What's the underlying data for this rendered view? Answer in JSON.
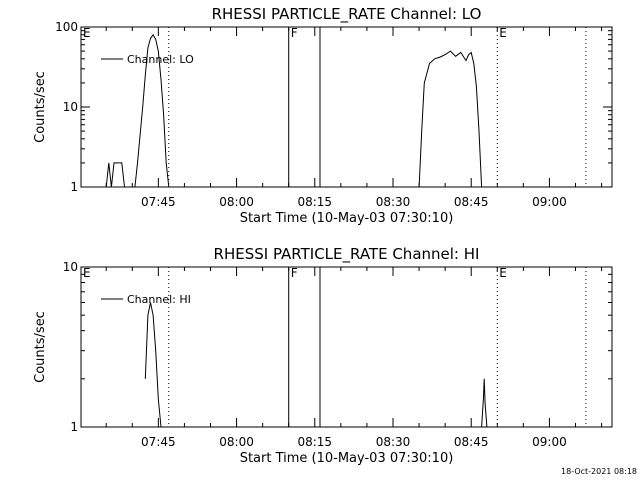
{
  "footer": "18-Oct-2021 08:18",
  "chart_data": [
    {
      "type": "line",
      "title": "RHESSI PARTICLE_RATE Channel: LO",
      "xlabel": "Start Time (10-May-03 07:30:10)",
      "ylabel": "Counts/sec",
      "yscale": "log",
      "ylim": [
        1,
        100
      ],
      "xlim": [
        "07:30:10",
        "09:12:00"
      ],
      "xticks": [
        "07:45",
        "08:00",
        "08:15",
        "08:30",
        "08:45",
        "09:00"
      ],
      "yticks": [
        "1",
        "10",
        "100"
      ],
      "legend": {
        "label": "Channel: LO",
        "placement": "top-left"
      },
      "markers": [
        {
          "label": "E",
          "time": "07:30:10",
          "style": "none"
        },
        {
          "label": "",
          "time": "07:47:00",
          "style": "dotted"
        },
        {
          "label": "F",
          "time": "08:10:00",
          "style": "solid"
        },
        {
          "label": "",
          "time": "08:16:00",
          "style": "solid"
        },
        {
          "label": "E",
          "time": "08:50:00",
          "style": "dotted"
        },
        {
          "label": "",
          "time": "09:07:00",
          "style": "dotted"
        }
      ],
      "series": [
        {
          "name": "Channel: LO",
          "segments": [
            [
              [
                "07:35:00",
                1
              ],
              [
                "07:35:30",
                2
              ],
              [
                "07:36:00",
                1
              ],
              [
                "07:36:30",
                2
              ],
              [
                "07:38:00",
                2
              ],
              [
                "07:38:30",
                1
              ],
              [
                "07:40:30",
                1
              ],
              [
                "07:41:00",
                2
              ],
              [
                "07:42:00",
                10
              ],
              [
                "07:42:30",
                25
              ],
              [
                "07:43:00",
                55
              ],
              [
                "07:43:30",
                72
              ],
              [
                "07:44:00",
                80
              ],
              [
                "07:44:30",
                70
              ],
              [
                "07:45:00",
                50
              ],
              [
                "07:45:30",
                22
              ],
              [
                "07:46:00",
                8
              ],
              [
                "07:46:30",
                2
              ],
              [
                "07:47:00",
                1
              ]
            ],
            [
              [
                "08:35:00",
                1
              ],
              [
                "08:35:30",
                5
              ],
              [
                "08:36:00",
                20
              ],
              [
                "08:37:00",
                35
              ],
              [
                "08:38:00",
                40
              ],
              [
                "08:39:00",
                42
              ],
              [
                "08:40:00",
                45
              ],
              [
                "08:41:00",
                50
              ],
              [
                "08:42:00",
                43
              ],
              [
                "08:43:00",
                48
              ],
              [
                "08:44:00",
                38
              ],
              [
                "08:44:30",
                45
              ],
              [
                "08:45:00",
                48
              ],
              [
                "08:45:30",
                35
              ],
              [
                "08:46:00",
                18
              ],
              [
                "08:46:30",
                5
              ],
              [
                "08:47:00",
                1
              ]
            ]
          ]
        }
      ]
    },
    {
      "type": "line",
      "title": "RHESSI PARTICLE_RATE Channel: HI",
      "xlabel": "Start Time (10-May-03 07:30:10)",
      "ylabel": "Counts/sec",
      "yscale": "log",
      "ylim": [
        1,
        10
      ],
      "xlim": [
        "07:30:10",
        "09:12:00"
      ],
      "xticks": [
        "07:45",
        "08:00",
        "08:15",
        "08:30",
        "08:45",
        "09:00"
      ],
      "yticks": [
        "1",
        "10"
      ],
      "legend": {
        "label": "Channel: HI",
        "placement": "top-left"
      },
      "markers": [
        {
          "label": "E",
          "time": "07:30:10",
          "style": "none"
        },
        {
          "label": "",
          "time": "07:47:00",
          "style": "dotted"
        },
        {
          "label": "F",
          "time": "08:10:00",
          "style": "solid"
        },
        {
          "label": "",
          "time": "08:16:00",
          "style": "solid"
        },
        {
          "label": "E",
          "time": "08:50:00",
          "style": "dotted"
        },
        {
          "label": "",
          "time": "09:07:00",
          "style": "dotted"
        }
      ],
      "series": [
        {
          "name": "Channel: HI",
          "segments": [
            [
              [
                "07:42:30",
                2
              ],
              [
                "07:43:00",
                5
              ],
              [
                "07:43:30",
                6
              ],
              [
                "07:44:00",
                5
              ],
              [
                "07:44:30",
                3
              ],
              [
                "07:45:00",
                1.5
              ],
              [
                "07:45:30",
                1
              ]
            ],
            [
              [
                "08:47:00",
                1
              ],
              [
                "08:47:20",
                1.5
              ],
              [
                "08:47:30",
                2
              ],
              [
                "08:47:40",
                1.4
              ],
              [
                "08:48:00",
                1
              ]
            ]
          ]
        }
      ]
    }
  ]
}
